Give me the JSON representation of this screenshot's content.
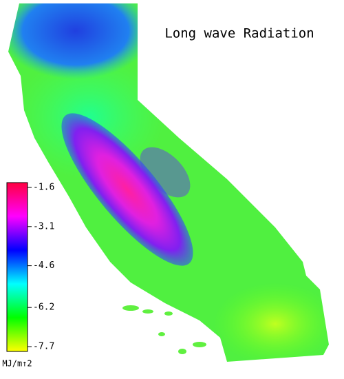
{
  "title": "Long wave Radiation",
  "colorbar": {
    "range": [
      -7.7,
      -1.6
    ],
    "ticks": [
      -1.6,
      -3.1,
      -4.6,
      -6.2,
      -7.7
    ],
    "unit": "MJ/m↑2",
    "colors": [
      "#ffff00",
      "#00ff00",
      "#00ffff",
      "#0000ff",
      "#ff00ff",
      "#ff0040"
    ]
  }
}
